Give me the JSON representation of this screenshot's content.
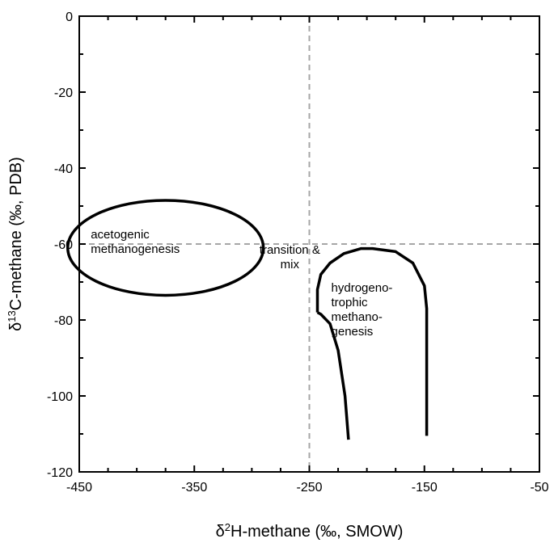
{
  "chart_data": {
    "type": "scatter",
    "title": "",
    "xlabel": {
      "prefix": "δ",
      "sup": "2",
      "main": "H-methane (‰, SMOW)"
    },
    "ylabel": {
      "prefix": "δ",
      "sup": "13",
      "main": "C-methane (‰, PDB)"
    },
    "xlim": [
      -450,
      -50
    ],
    "ylim": [
      -120,
      0
    ],
    "xticks": [
      -450,
      -350,
      -250,
      -150,
      -50
    ],
    "yticks": [
      0,
      -20,
      -40,
      -60,
      -80,
      -100,
      -120
    ],
    "xticks_minor_step": 25,
    "yticks_minor_step": 10,
    "grid": false,
    "reference_lines": [
      {
        "orientation": "vertical",
        "value": -250,
        "style": "dashed",
        "color": "#a6a6a6"
      },
      {
        "orientation": "horizontal",
        "value": -60,
        "style": "dashed",
        "color": "#a6a6a6"
      }
    ],
    "regions": [
      {
        "name": "acetogenic-region",
        "shape": "ellipse",
        "center": [
          -375,
          -61
        ],
        "radius": [
          85,
          12.5
        ],
        "label_lines": [
          "acetogenic",
          "methanogenesis"
        ],
        "label_pos": [
          -440,
          -58.5
        ]
      },
      {
        "name": "hydrogenotrophic-region",
        "shape": "path",
        "points": [
          [
            -243,
            -78
          ],
          [
            -243,
            -72
          ],
          [
            -240,
            -68
          ],
          [
            -232,
            -65
          ],
          [
            -220,
            -62.5
          ],
          [
            -205,
            -61.2
          ],
          [
            -195,
            -61.2
          ],
          [
            -175,
            -62
          ],
          [
            -160,
            -65
          ],
          [
            -150,
            -71
          ],
          [
            -148,
            -77
          ],
          [
            -148,
            -110.5
          ]
        ],
        "tail_points": [
          [
            -243,
            -78
          ],
          [
            -240,
            -78.5
          ],
          [
            -232,
            -81
          ],
          [
            -225,
            -88
          ],
          [
            -219,
            -100
          ],
          [
            -216,
            -111.5
          ]
        ],
        "label_lines": [
          "hydrogeno-",
          "trophic",
          "methano-",
          "genesis"
        ],
        "label_pos": [
          -231,
          -72.5
        ]
      }
    ],
    "annotations": [
      {
        "lines": [
          "transition &",
          "mix"
        ],
        "pos": [
          -267,
          -62.5
        ]
      }
    ]
  }
}
